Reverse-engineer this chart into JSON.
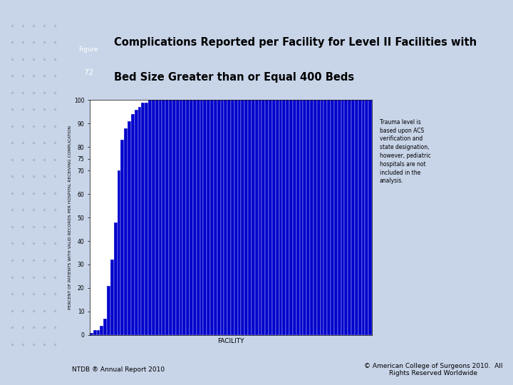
{
  "title_line1": "Complications Reported per Facility for Level II Facilities with",
  "title_line2": "Bed Size Greater than or Equal 400 Beds",
  "xlabel": "FACILITY",
  "ylabel": "PERCENT OF PATIENTS WITH VALID RECORDS PER HOSPITAL RECEIVING COMPLICATION",
  "annotation_lines": [
    "Trauma level is",
    "based upon ACS",
    "verification and",
    "state designation,",
    "however, pediatric",
    "hospitals are not",
    "included in the",
    "analysis."
  ],
  "footer_left": "NTDB ® Annual Report 2010",
  "footer_right": "© American College of Surgeons 2010.  All\nRights Reserved Worldwide",
  "bar_color": "#0000CC",
  "page_bg_color": "#c8d4e8",
  "dot_color": "#aabbcc",
  "white_bg": "#FFFFFF",
  "title_bg_color": "#1a3399",
  "title_text_color": "#FFFFFF",
  "ylim": [
    0,
    100
  ],
  "ytick_labels": [
    "0",
    "10",
    "20",
    "30",
    "40",
    "50",
    "60",
    "70",
    "75",
    "80",
    "90",
    "100"
  ],
  "ytick_values": [
    0,
    10,
    20,
    30,
    40,
    50,
    60,
    70,
    75,
    80,
    90,
    100
  ],
  "values": [
    1,
    2,
    2,
    4,
    7,
    21,
    32,
    48,
    70,
    83,
    88,
    91,
    94,
    96,
    97,
    99,
    99,
    100,
    100,
    100,
    100,
    100,
    100,
    100,
    100,
    100,
    100,
    100,
    100,
    100,
    100,
    100,
    100,
    100,
    100,
    100,
    100,
    100,
    100,
    100,
    100,
    100,
    100,
    100,
    100,
    100,
    100,
    100,
    100,
    100,
    100,
    100,
    100,
    100,
    100,
    100,
    100,
    100,
    100,
    100,
    100,
    100,
    100,
    100,
    100,
    100,
    100,
    100,
    100,
    100,
    100,
    100,
    100,
    100,
    100,
    100,
    100,
    100,
    100,
    100,
    100,
    100
  ]
}
